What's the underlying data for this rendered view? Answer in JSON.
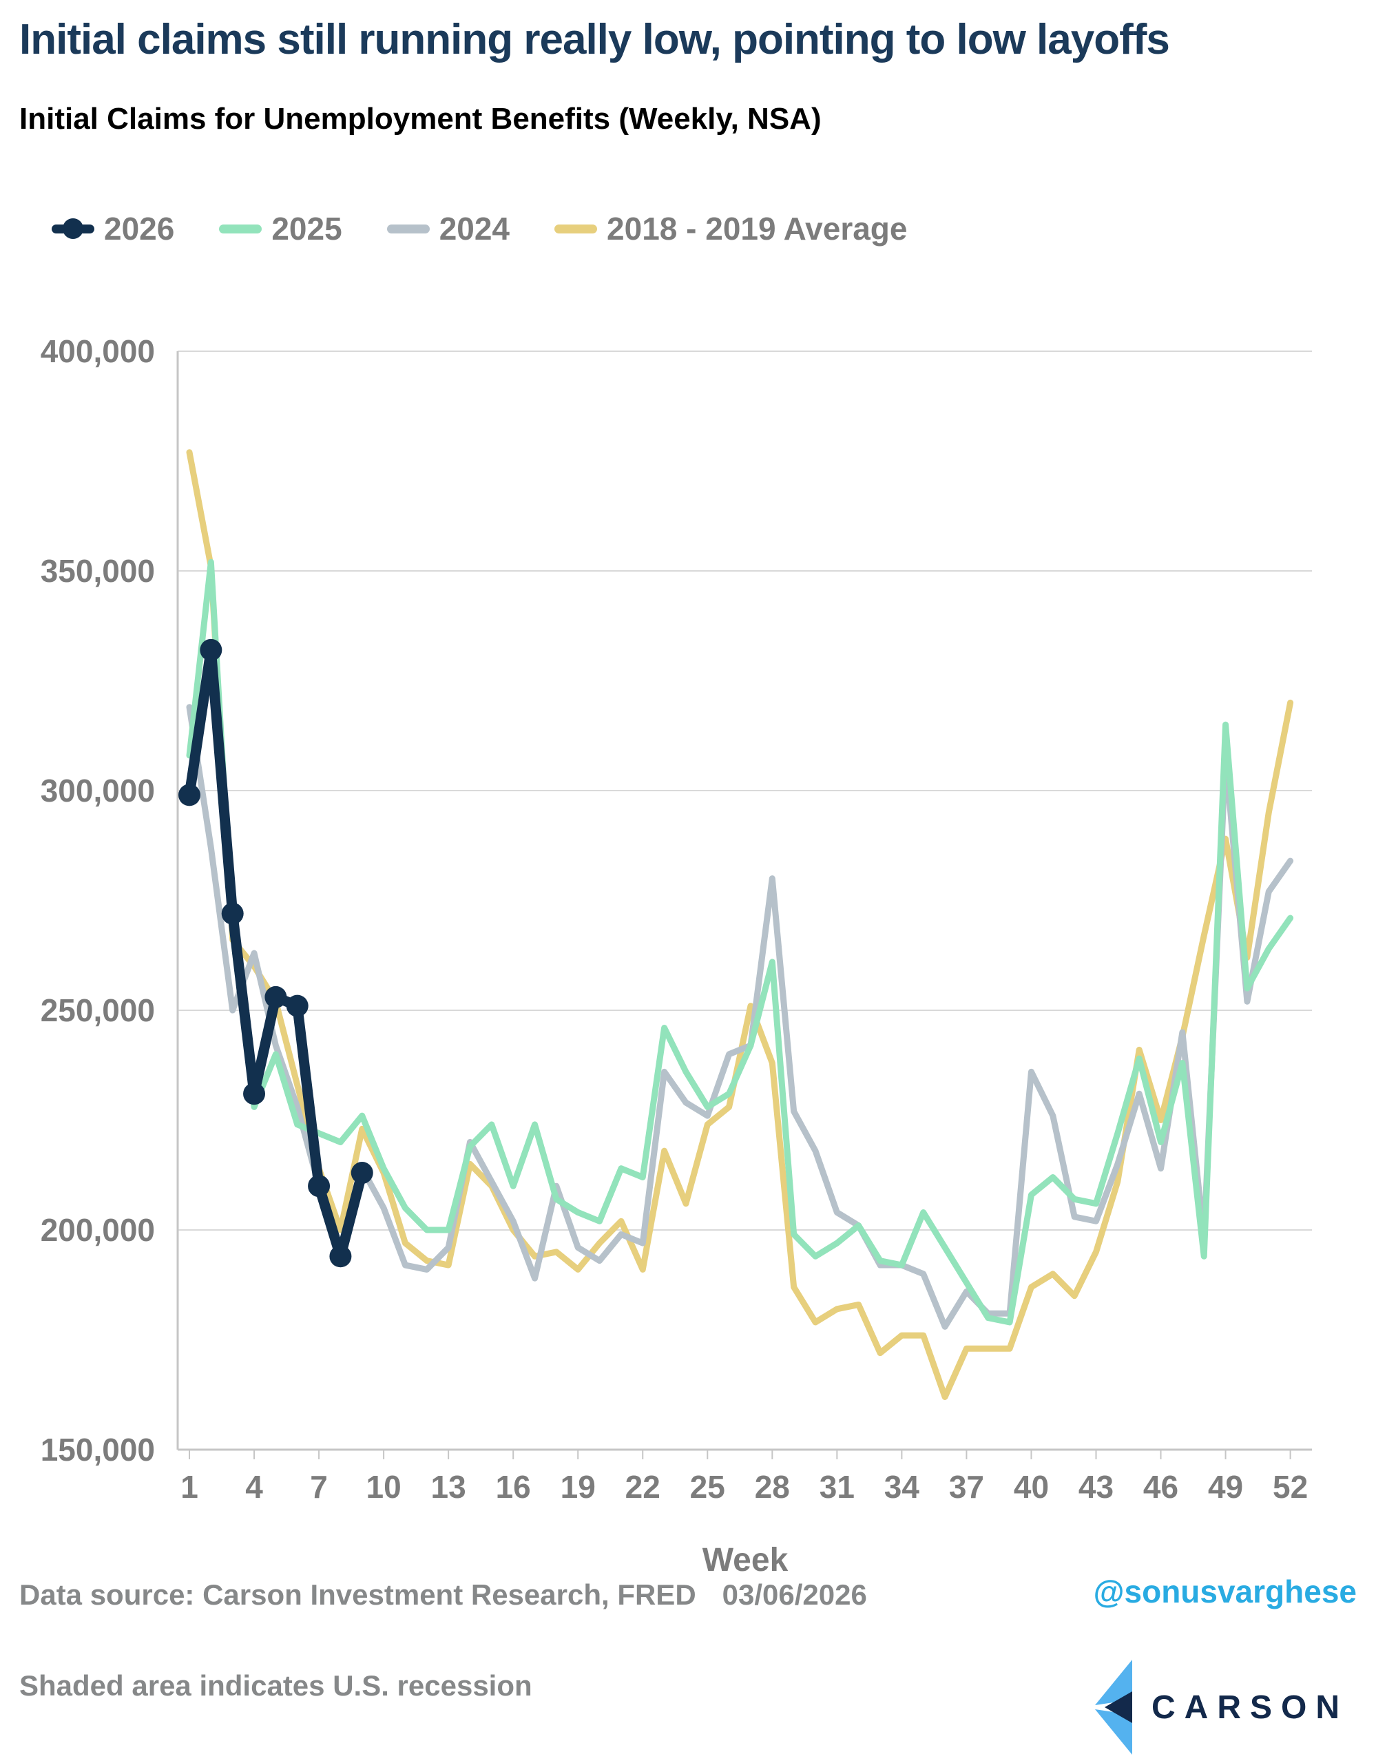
{
  "title": "Initial claims still running really low, pointing to low layoffs",
  "subtitle": "Initial Claims for Unemployment Benefits (Weekly, NSA)",
  "legend": {
    "items": [
      {
        "label": "2026",
        "color": "#12304e",
        "has_dot": true
      },
      {
        "label": "2025",
        "color": "#92e3bb",
        "has_dot": false
      },
      {
        "label": "2024",
        "color": "#b6c1ca",
        "has_dot": false
      },
      {
        "label": "2018 - 2019 Average",
        "color": "#e7cf7d",
        "has_dot": false
      }
    ]
  },
  "footer": {
    "source_label": "Data source: Carson Investment Research, FRED",
    "date": "03/06/2026",
    "handle": "@sonusvarghese",
    "note": "Shaded area indicates U.S. recession",
    "handle_color": "#29abe2"
  },
  "logo": {
    "text": "CARSON",
    "icon": "carson-chevron",
    "light_blue": "#54b2ef",
    "navy": "#13294b"
  },
  "chart_data": {
    "type": "line",
    "xlabel": "Week",
    "ylabel": "",
    "x_weeks": [
      1,
      2,
      3,
      4,
      5,
      6,
      7,
      8,
      9,
      10,
      11,
      12,
      13,
      14,
      15,
      16,
      17,
      18,
      19,
      20,
      21,
      22,
      23,
      24,
      25,
      26,
      27,
      28,
      29,
      30,
      31,
      32,
      33,
      34,
      35,
      36,
      37,
      38,
      39,
      40,
      41,
      42,
      43,
      44,
      45,
      46,
      47,
      48,
      49,
      50,
      51,
      52
    ],
    "xticks": [
      1,
      4,
      7,
      10,
      13,
      16,
      19,
      22,
      25,
      28,
      31,
      34,
      37,
      40,
      43,
      46,
      49,
      52
    ],
    "ylim": [
      150000,
      400000
    ],
    "yticks": [
      {
        "value": 400000,
        "label": "400,000"
      },
      {
        "value": 350000,
        "label": "350,000"
      },
      {
        "value": 300000,
        "label": "300,000"
      },
      {
        "value": 250000,
        "label": "250,000"
      },
      {
        "value": 200000,
        "label": "200,000"
      },
      {
        "value": 150000,
        "label": "150,000"
      }
    ],
    "grid": true,
    "legend_position": "top-left",
    "values_unit": "thousands of claims",
    "series": [
      {
        "name": "2018 - 2019 Average",
        "color": "#e7cf7d",
        "stroke_width": 9,
        "marker": false,
        "values_thousands": [
          377,
          351,
          266,
          260,
          252,
          233,
          214,
          200,
          223,
          213,
          197,
          193,
          192,
          215,
          210,
          200,
          194,
          195,
          191,
          197,
          202,
          191,
          218,
          206,
          224,
          228,
          251,
          238,
          187,
          179,
          182,
          183,
          172,
          176,
          176,
          162,
          173,
          173,
          173,
          187,
          190,
          185,
          195,
          211,
          241,
          225,
          244,
          267,
          289,
          262,
          295,
          320
        ]
      },
      {
        "name": "2024",
        "color": "#b6c1ca",
        "stroke_width": 9,
        "marker": false,
        "values_thousands": [
          319,
          287,
          250,
          263,
          242,
          228,
          210,
          196,
          214,
          205,
          192,
          191,
          196,
          220,
          211,
          202,
          189,
          210,
          196,
          193,
          199,
          197,
          236,
          229,
          226,
          240,
          242,
          280,
          227,
          218,
          204,
          201,
          192,
          192,
          190,
          178,
          186,
          181,
          181,
          236,
          226,
          203,
          202,
          215,
          231,
          214,
          245,
          198,
          308,
          252,
          277,
          284
        ]
      },
      {
        "name": "2025",
        "color": "#92e3bb",
        "stroke_width": 9,
        "marker": false,
        "values_thousands": [
          308,
          352,
          268,
          228,
          240,
          224,
          222,
          220,
          226,
          214,
          205,
          200,
          200,
          219,
          224,
          210,
          224,
          207,
          204,
          202,
          214,
          212,
          246,
          236,
          228,
          231,
          242,
          261,
          199,
          194,
          197,
          201,
          193,
          192,
          204,
          196,
          188,
          180,
          179,
          208,
          212,
          207,
          206,
          222,
          239,
          220,
          238,
          194,
          315,
          255,
          264,
          271
        ]
      },
      {
        "name": "2026",
        "color": "#12304e",
        "stroke_width": 15,
        "marker": true,
        "marker_radius": 16,
        "values_thousands": [
          299,
          332,
          272,
          231,
          253,
          251,
          210,
          194,
          213
        ]
      }
    ]
  }
}
